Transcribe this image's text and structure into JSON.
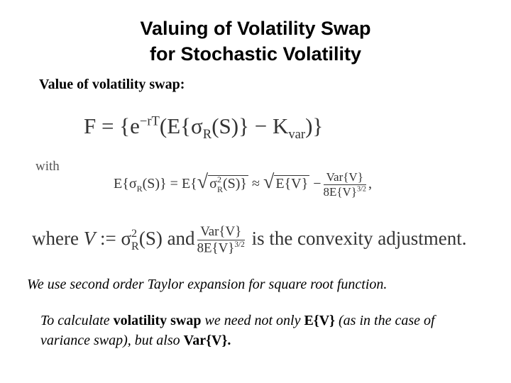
{
  "title": [
    "Valuing of Volatility Swap",
    "for Stochastic Volatility"
  ],
  "subheading": "Value of volatility swap:",
  "formula_1": [
    "F",
    "=",
    "{e",
    "−rT",
    "(E{σ",
    "R",
    "(S)}",
    "−",
    "K",
    "var",
    ")}"
  ],
  "with": "with",
  "formula_2": [
    "E{σ",
    "R",
    "(S)}",
    "=",
    "E{",
    "√",
    "σ",
    "2",
    "R",
    "(S)}",
    "≈",
    "√",
    "E{V}",
    "−",
    "Var{V}",
    "8E{V}",
    "3/2",
    ","
  ],
  "formula_3": [
    "where",
    "V",
    ":=",
    "σ",
    "2",
    "R",
    "(S)",
    "and",
    "Var{V}",
    "8E{V}",
    "3/2",
    "is the convexity adjustment."
  ],
  "taylor_note": "We use second order Taylor expansion for square root function.",
  "paragraph": [
    "To calculate",
    "volatility swap",
    "we need not only",
    "E{V}",
    "(as in the case of variance swap), but also",
    "Var{V}",
    "."
  ]
}
